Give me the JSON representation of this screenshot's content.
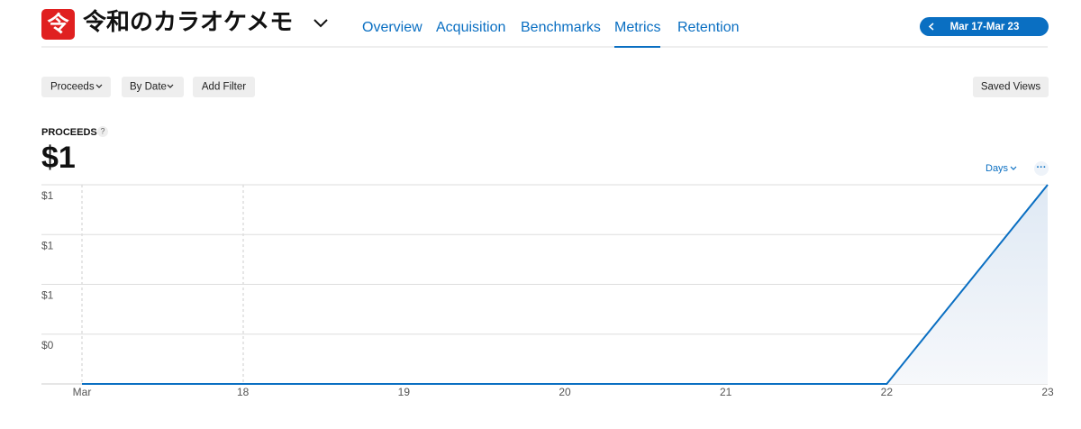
{
  "header": {
    "logo": "令",
    "app_name": "令和のカラオケメモ",
    "tabs": [
      "Overview",
      "Acquisition",
      "Benchmarks",
      "Metrics",
      "Retention"
    ],
    "date_range": "Mar 17-Mar 23"
  },
  "toolbar": {
    "filters": [
      "Proceeds",
      "By Date",
      "Add Filter"
    ],
    "saved_views": "Saved Views"
  },
  "summary": {
    "label": "PROCEEDS",
    "help": "?",
    "total": "$1",
    "period": "Days",
    "more": "···"
  },
  "chart_data": {
    "type": "line",
    "categories": [
      "Mar",
      "18",
      "19",
      "20",
      "21",
      "22",
      "23"
    ],
    "series": [
      {
        "color": "#0a6fc2",
        "values": [
          0,
          0,
          0,
          0,
          0,
          0,
          1
        ]
      }
    ],
    "ylim": [
      0,
      1
    ],
    "yticks": [
      {
        "value": 0.25,
        "label": "$0"
      },
      {
        "value": 0.5,
        "label": "$1"
      },
      {
        "value": 0.75,
        "label": "$1"
      },
      {
        "value": 1,
        "label": "$1"
      }
    ],
    "grid": true
  }
}
